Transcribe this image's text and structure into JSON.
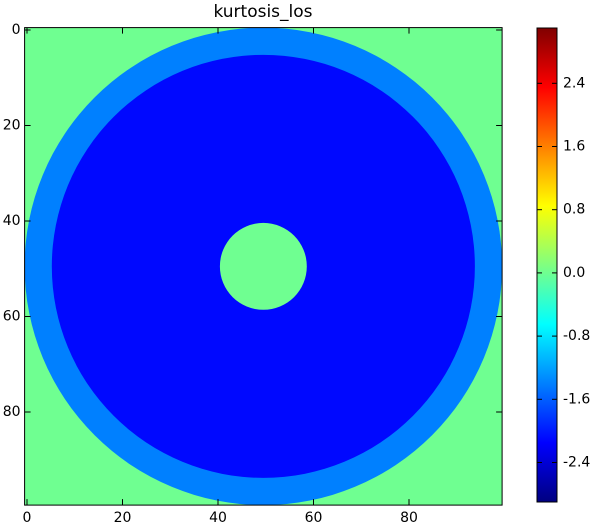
{
  "chart_data": {
    "type": "heatmap",
    "title": "kurtosis_los",
    "colormap": "jet",
    "xlim": [
      -0.5,
      99.5
    ],
    "ylim": [
      99.5,
      -0.5
    ],
    "xticks": [
      0,
      20,
      40,
      60,
      80
    ],
    "yticks": [
      0,
      20,
      40,
      60,
      80
    ],
    "center": [
      49.5,
      49.5
    ],
    "background": 0,
    "rings": [
      {
        "radius": 50,
        "value": -1.4
      },
      {
        "radius": 44.3,
        "value": -2.1
      },
      {
        "radius": 9.1,
        "value": 0
      }
    ],
    "clim": [
      -2.9,
      3.1
    ],
    "cticks": [
      -2.4,
      -1.6,
      -0.8,
      {
        "value": 0,
        "label": "0.0"
      },
      0.8,
      1.6,
      2.4
    ]
  }
}
